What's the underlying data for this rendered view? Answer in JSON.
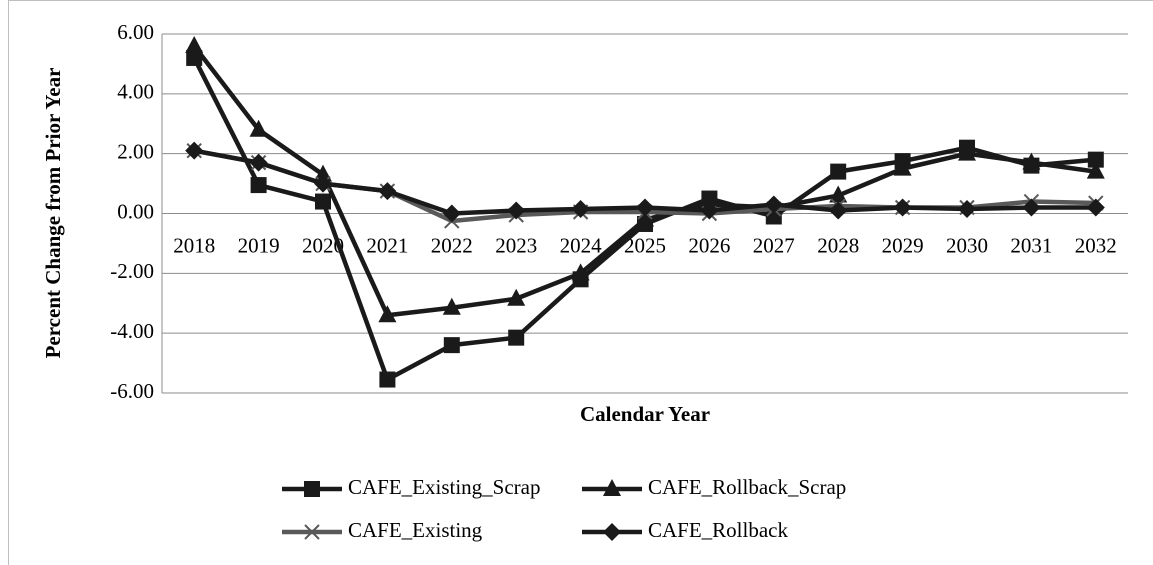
{
  "chart_data": {
    "type": "line",
    "x_label": "Calendar Year",
    "y_label": "Percent Change from Prior Year",
    "categories": [
      "2018",
      "2019",
      "2020",
      "2021",
      "2022",
      "2023",
      "2024",
      "2025",
      "2026",
      "2027",
      "2028",
      "2029",
      "2030",
      "2031",
      "2032"
    ],
    "series": [
      {
        "name": "CAFE_Existing_Scrap",
        "color": "#1a1a1a",
        "marker": "square",
        "values": [
          5.2,
          0.95,
          0.4,
          -5.55,
          -4.4,
          -4.15,
          -2.2,
          -0.35,
          0.5,
          -0.1,
          1.4,
          1.75,
          2.2,
          1.6,
          1.8
        ]
      },
      {
        "name": "CAFE_Rollback_Scrap",
        "color": "#1a1a1a",
        "marker": "triangle",
        "values": [
          5.6,
          2.8,
          1.3,
          -3.4,
          -3.15,
          -2.85,
          -2.0,
          -0.2,
          0.3,
          0.2,
          0.6,
          1.5,
          2.0,
          1.7,
          1.4
        ]
      },
      {
        "name": "CAFE_Existing",
        "color": "#595959",
        "marker": "x",
        "values": [
          2.1,
          1.7,
          1.0,
          0.75,
          -0.25,
          -0.05,
          0.05,
          0.05,
          0.0,
          0.15,
          0.25,
          0.2,
          0.2,
          0.4,
          0.35
        ]
      },
      {
        "name": "CAFE_Rollback",
        "color": "#1a1a1a",
        "marker": "diamond",
        "values": [
          2.1,
          1.7,
          1.0,
          0.75,
          0.0,
          0.1,
          0.15,
          0.2,
          0.1,
          0.3,
          0.1,
          0.2,
          0.15,
          0.2,
          0.2
        ]
      }
    ],
    "ylim": [
      -6,
      6
    ],
    "yticks": [
      {
        "value": -6,
        "label": "-6.00"
      },
      {
        "value": -4,
        "label": "-4.00"
      },
      {
        "value": -2,
        "label": "-2.00"
      },
      {
        "value": 0,
        "label": "0.00"
      },
      {
        "value": 2,
        "label": "2.00"
      },
      {
        "value": 4,
        "label": "4.00"
      },
      {
        "value": 6,
        "label": "6.00"
      }
    ],
    "grid": true,
    "legend": "bottom"
  }
}
